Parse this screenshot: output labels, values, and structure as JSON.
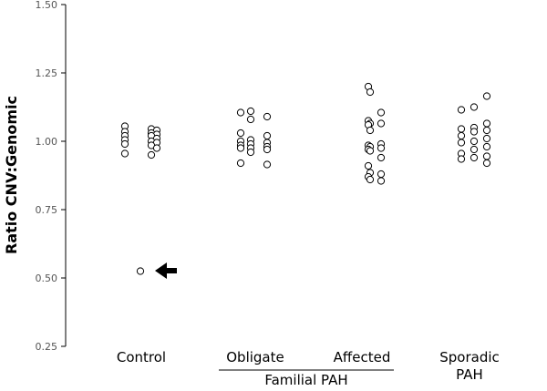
{
  "chart_data": {
    "type": "scatter",
    "title": "",
    "xlabel": "",
    "ylabel": "Ratio CNV:Genomic",
    "ylim": [
      0.25,
      1.5
    ],
    "yticks": [
      "0.25",
      "0.50",
      "0.75",
      "1.00",
      "1.25",
      "1.50"
    ],
    "categories": [
      "Control",
      "Obligate",
      "Affected",
      "Sporadic PAH"
    ],
    "group_label": "Familial PAH",
    "grid": false,
    "series": [
      {
        "category": "Control",
        "values": [
          1.055,
          1.045,
          1.04,
          1.035,
          1.03,
          1.025,
          1.02,
          1.02,
          1.01,
          1.005,
          1.0,
          0.995,
          0.99,
          0.985,
          0.975,
          0.955,
          0.95,
          0.525
        ]
      },
      {
        "category": "Obligate",
        "values": [
          1.11,
          1.105,
          1.09,
          1.08,
          1.03,
          1.02,
          1.005,
          1.0,
          0.995,
          0.99,
          0.985,
          0.98,
          0.975,
          0.975,
          0.97,
          0.96,
          0.92,
          0.915
        ]
      },
      {
        "category": "Affected",
        "values": [
          1.2,
          1.18,
          1.105,
          1.075,
          1.065,
          1.065,
          1.06,
          1.04,
          0.99,
          0.985,
          0.98,
          0.975,
          0.97,
          0.965,
          0.94,
          0.91,
          0.885,
          0.88,
          0.87,
          0.86,
          0.855
        ]
      },
      {
        "category": "Sporadic PAH",
        "values": [
          1.165,
          1.125,
          1.115,
          1.065,
          1.05,
          1.045,
          1.04,
          1.035,
          1.02,
          1.01,
          1.0,
          0.995,
          0.98,
          0.97,
          0.955,
          0.945,
          0.94,
          0.935,
          0.92
        ]
      }
    ],
    "annotation": {
      "type": "arrow",
      "points_to_value": 0.525,
      "category": "Control"
    }
  }
}
